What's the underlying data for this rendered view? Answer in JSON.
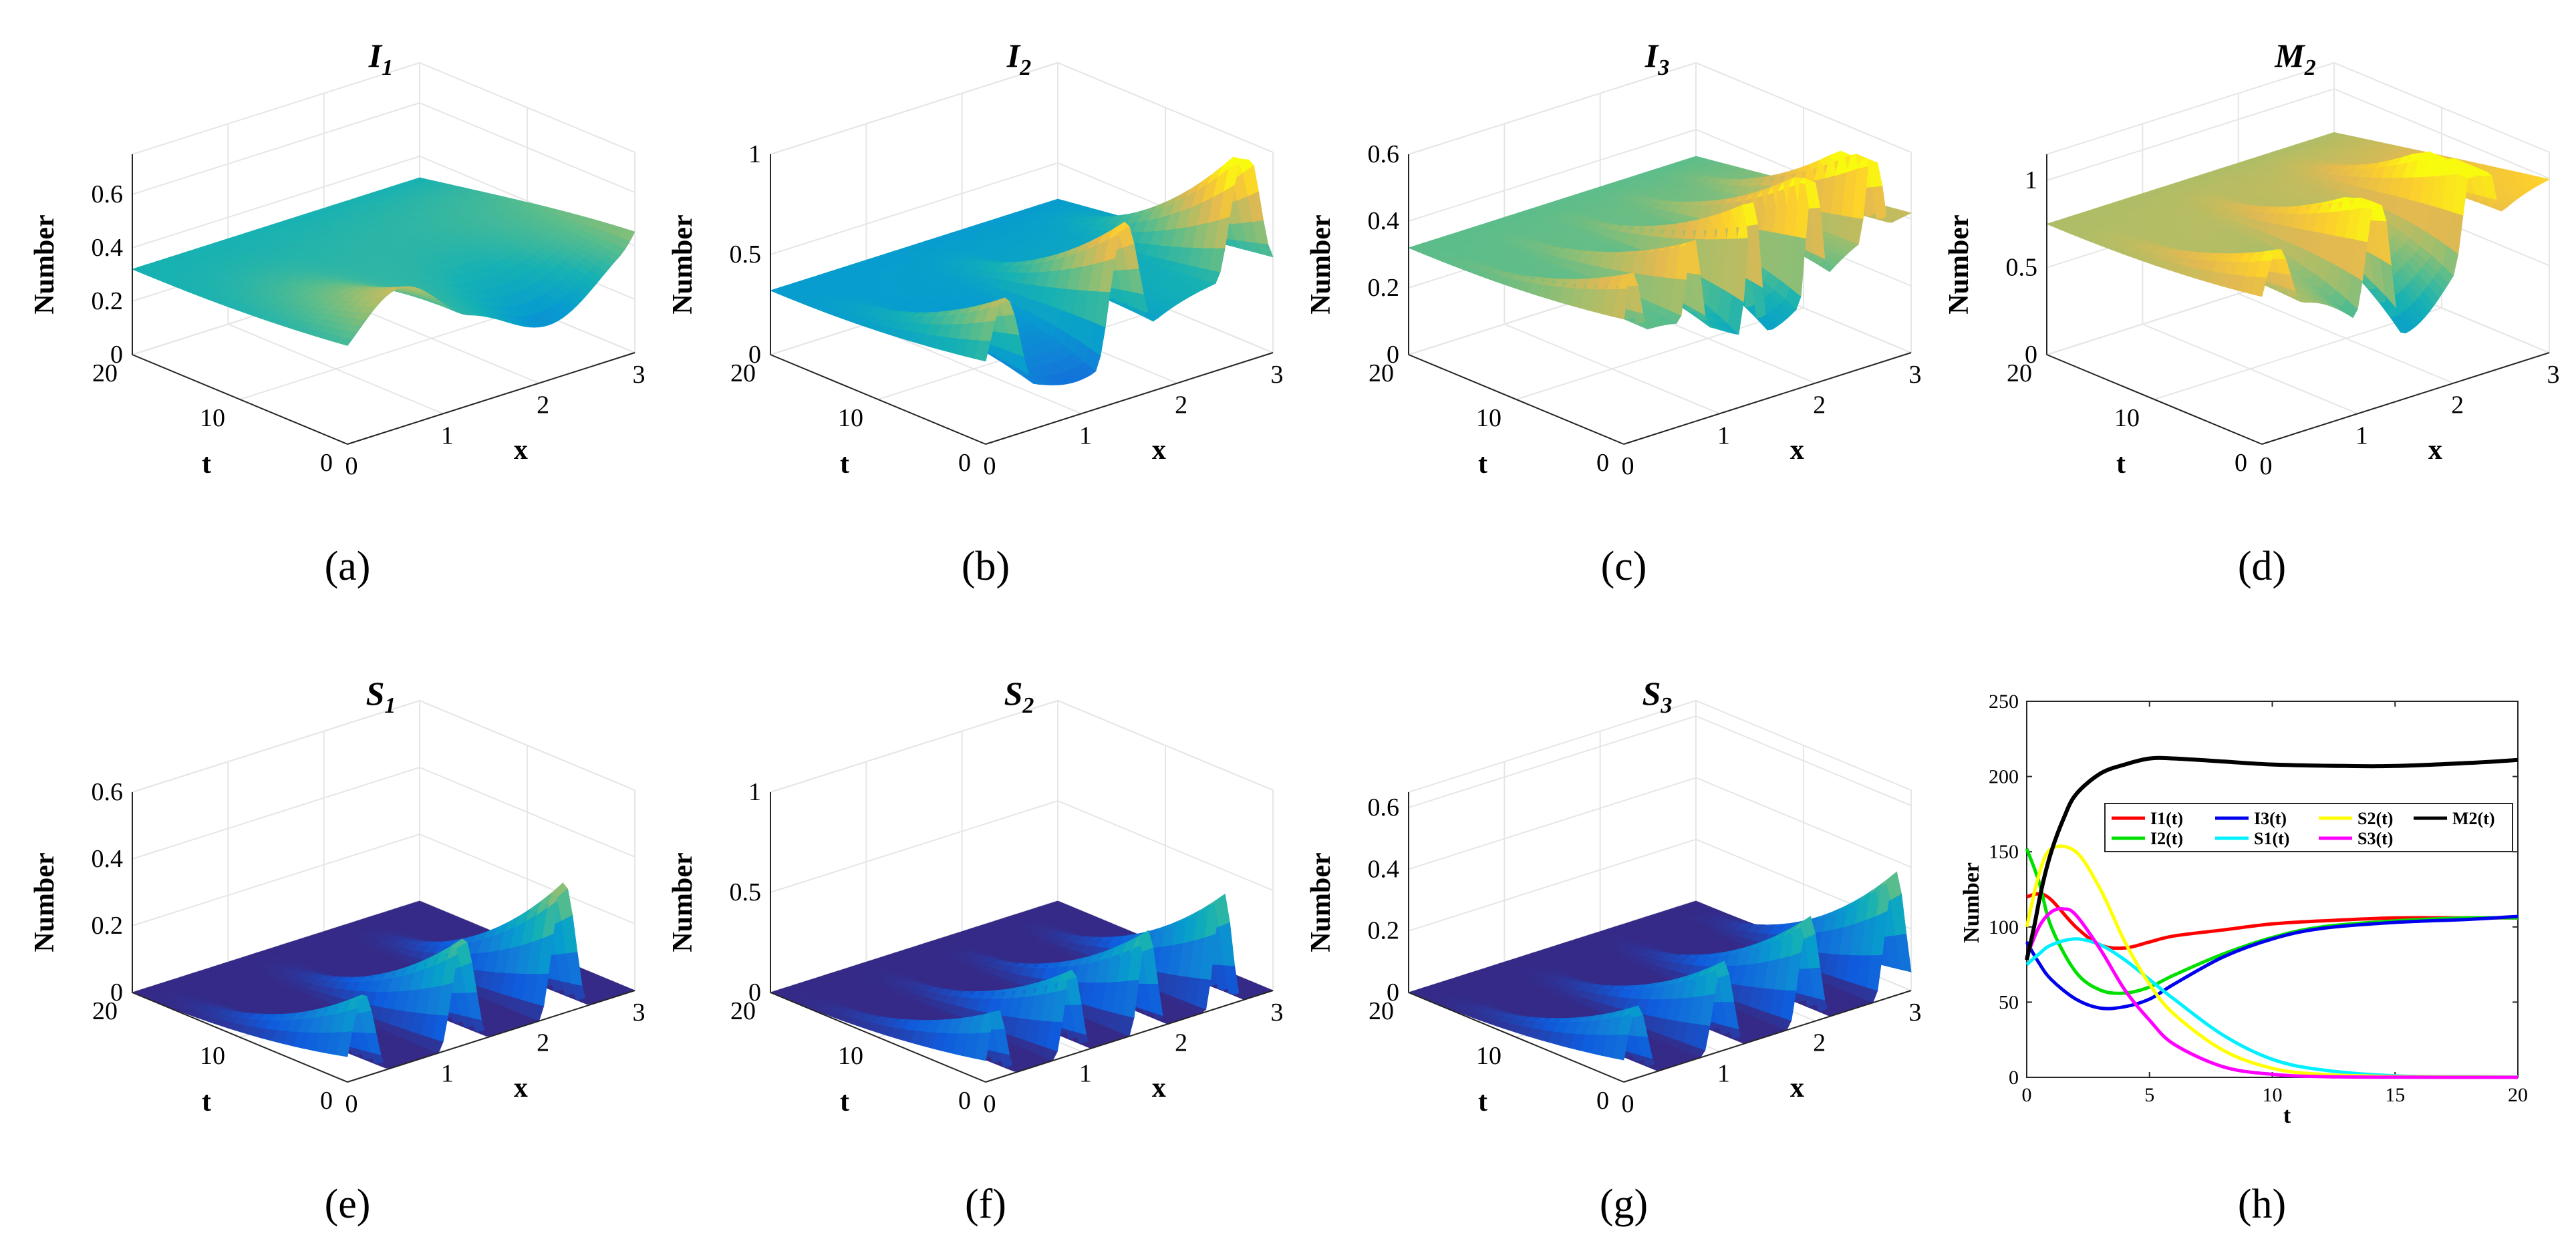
{
  "figure": {
    "panels": [
      {
        "id": "a",
        "caption": "(a)",
        "title_main": "I",
        "title_sub": "1",
        "zlabel": "Number",
        "xlabel": "x",
        "tlabel": "t",
        "zticks": [
          "0",
          "0.2",
          "0.4",
          "0.6"
        ],
        "xticks": [
          "0",
          "1",
          "2",
          "3"
        ],
        "tticks": [
          "0",
          "10",
          "20"
        ],
        "zmax": 0.75
      },
      {
        "id": "b",
        "caption": "(b)",
        "title_main": "I",
        "title_sub": "2",
        "zlabel": "Number",
        "xlabel": "x",
        "tlabel": "t",
        "zticks": [
          "0",
          "0.5",
          "1"
        ],
        "xticks": [
          "0",
          "1",
          "2",
          "3"
        ],
        "tticks": [
          "0",
          "10",
          "20"
        ],
        "zmax": 1.0
      },
      {
        "id": "c",
        "caption": "(c)",
        "title_main": "I",
        "title_sub": "3",
        "zlabel": "Number",
        "xlabel": "x",
        "tlabel": "t",
        "zticks": [
          "0",
          "0.2",
          "0.4",
          "0.6"
        ],
        "xticks": [
          "0",
          "1",
          "2",
          "3"
        ],
        "tticks": [
          "0",
          "10",
          "20"
        ],
        "zmax": 0.6
      },
      {
        "id": "d",
        "caption": "(d)",
        "title_main": "M",
        "title_sub": "2",
        "zlabel": "Number",
        "xlabel": "x",
        "tlabel": "t",
        "zticks": [
          "0",
          "0.5",
          "1"
        ],
        "xticks": [
          "0",
          "1",
          "2",
          "3"
        ],
        "tticks": [
          "0",
          "10",
          "20"
        ],
        "zmax": 1.15
      },
      {
        "id": "e",
        "caption": "(e)",
        "title_main": "S",
        "title_sub": "1",
        "zlabel": "Number",
        "xlabel": "x",
        "tlabel": "t",
        "zticks": [
          "0",
          "0.2",
          "0.4",
          "0.6"
        ],
        "xticks": [
          "0",
          "1",
          "2",
          "3"
        ],
        "tticks": [
          "0",
          "10",
          "20"
        ],
        "zmax": 0.6
      },
      {
        "id": "f",
        "caption": "(f)",
        "title_main": "S",
        "title_sub": "2",
        "zlabel": "Number",
        "xlabel": "x",
        "tlabel": "t",
        "zticks": [
          "0",
          "0.5",
          "1"
        ],
        "xticks": [
          "0",
          "1",
          "2",
          "3"
        ],
        "tticks": [
          "0",
          "10",
          "20"
        ],
        "zmax": 1.0
      },
      {
        "id": "g",
        "caption": "(g)",
        "title_main": "S",
        "title_sub": "3",
        "zlabel": "Number",
        "xlabel": "x",
        "tlabel": "t",
        "zticks": [
          "0",
          "0.2",
          "0.4",
          "0.6"
        ],
        "xticks": [
          "0",
          "1",
          "2",
          "3"
        ],
        "tticks": [
          "0",
          "10",
          "20"
        ],
        "zmax": 0.65
      }
    ]
  },
  "chart_data": [
    {
      "type": "surface",
      "title": "I1",
      "xlabel": "x",
      "ylabel": "t",
      "zlabel": "Number",
      "xlim": [
        0,
        3
      ],
      "tlim": [
        0,
        20
      ],
      "zlim": [
        0,
        0.75
      ],
      "surface_model": {
        "base": 0.32,
        "base_end": 0.47,
        "wave_x": 2.0,
        "ampl": 0.22,
        "dip": 0.22,
        "dip_x": 2.15
      }
    },
    {
      "type": "surface",
      "title": "I2",
      "xlabel": "x",
      "ylabel": "t",
      "zlabel": "Number",
      "xlim": [
        0,
        3
      ],
      "tlim": [
        0,
        20
      ],
      "zlim": [
        0,
        1
      ],
      "surface_model": {
        "base": 0.32,
        "base_end": 0.47,
        "wave_x": 5.0,
        "ampl": 0.5,
        "dip": 0.2,
        "dip_x": 1.0
      }
    },
    {
      "type": "surface",
      "title": "I3",
      "xlabel": "x",
      "ylabel": "t",
      "zlabel": "Number",
      "xlim": [
        0,
        3
      ],
      "tlim": [
        0,
        20
      ],
      "zlim": [
        0,
        0.6
      ],
      "surface_model": {
        "base": 0.32,
        "base_end": 0.42,
        "wave_x": 10.0,
        "ampl": 0.25,
        "dip": 0.17,
        "dip_x": 1.5
      }
    },
    {
      "type": "surface",
      "title": "M2",
      "xlabel": "x",
      "ylabel": "t",
      "zlabel": "Number",
      "xlim": [
        0,
        3
      ],
      "tlim": [
        0,
        20
      ],
      "zlim": [
        0,
        1.15
      ],
      "surface_model": {
        "base": 0.75,
        "base_end": 1.0,
        "wave_x": 6.0,
        "ampl": 0.45,
        "dip": 0.5,
        "dip_x": 1.5
      }
    },
    {
      "type": "surface",
      "title": "S1",
      "xlabel": "x",
      "ylabel": "t",
      "zlabel": "Number",
      "xlim": [
        0,
        3
      ],
      "tlim": [
        0,
        20
      ],
      "zlim": [
        0,
        0.6
      ],
      "surface_model": {
        "base": 0.0,
        "base_end": 0.0,
        "wave_x": 6.0,
        "ampl": 0.34,
        "dip": 0.0,
        "dip_x": 1.5
      }
    },
    {
      "type": "surface",
      "title": "S2",
      "xlabel": "x",
      "ylabel": "t",
      "zlabel": "Number",
      "xlim": [
        0,
        3
      ],
      "tlim": [
        0,
        20
      ],
      "zlim": [
        0,
        1
      ],
      "surface_model": {
        "base": 0.0,
        "base_end": 0.0,
        "wave_x": 8.0,
        "ampl": 0.48,
        "dip": 0.0,
        "dip_x": 1.5
      }
    },
    {
      "type": "surface",
      "title": "S3",
      "xlabel": "x",
      "ylabel": "t",
      "zlabel": "Number",
      "xlim": [
        0,
        3
      ],
      "tlim": [
        0,
        20
      ],
      "zlim": [
        0,
        0.65
      ],
      "surface_model": {
        "base": 0.0,
        "base_end": 0.0,
        "wave_x": 7.0,
        "ampl": 0.32,
        "dip": 0.0,
        "dip_x": 1.5
      }
    },
    {
      "type": "line",
      "title": "",
      "caption": "(h)",
      "xlabel": "t",
      "ylabel": "Number",
      "xlim": [
        0,
        20
      ],
      "ylim": [
        0,
        250
      ],
      "xticks": [
        0,
        5,
        10,
        15,
        20
      ],
      "yticks": [
        0,
        50,
        100,
        150,
        200,
        250
      ],
      "legend_location": "upper-right",
      "series": [
        {
          "name": "I1(t)",
          "color": "#ff0000",
          "x": [
            0,
            0.5,
            1,
            2,
            3,
            4,
            5,
            6,
            8,
            10,
            12,
            15,
            18,
            20
          ],
          "y": [
            120,
            122,
            118,
            100,
            88,
            86,
            90,
            94,
            98,
            102,
            104,
            106,
            106,
            106
          ]
        },
        {
          "name": "I2(t)",
          "color": "#00e000",
          "x": [
            0,
            0.5,
            1,
            2,
            3,
            4,
            5,
            6,
            8,
            10,
            12,
            15,
            18,
            20
          ],
          "y": [
            152,
            130,
            100,
            70,
            58,
            56,
            60,
            68,
            82,
            93,
            100,
            104,
            106,
            106
          ]
        },
        {
          "name": "I3(t)",
          "color": "#0000ee",
          "x": [
            0,
            0.5,
            1,
            2,
            3,
            4,
            5,
            6,
            8,
            10,
            12,
            15,
            18,
            20
          ],
          "y": [
            90,
            76,
            65,
            52,
            46,
            47,
            52,
            62,
            80,
            92,
            99,
            103,
            105,
            107
          ]
        },
        {
          "name": "S1(t)",
          "color": "#00f0ff",
          "x": [
            0,
            0.5,
            1,
            2,
            3,
            4,
            5,
            6,
            8,
            10,
            12,
            15,
            18,
            20
          ],
          "y": [
            75,
            82,
            88,
            92,
            88,
            78,
            65,
            52,
            28,
            12,
            5,
            1,
            0.5,
            0.2
          ]
        },
        {
          "name": "S2(t)",
          "color": "#ffff00",
          "x": [
            0,
            0.5,
            1,
            2,
            3,
            4,
            5,
            6,
            8,
            10,
            12,
            15,
            18,
            20
          ],
          "y": [
            100,
            135,
            152,
            150,
            125,
            90,
            62,
            42,
            18,
            6,
            2,
            0.5,
            0.2,
            0.1
          ]
        },
        {
          "name": "S3(t)",
          "color": "#ff00ff",
          "x": [
            0,
            0.5,
            1,
            1.5,
            2,
            3,
            4,
            5,
            6,
            8,
            10,
            12,
            15,
            20
          ],
          "y": [
            80,
            100,
            110,
            112,
            108,
            85,
            58,
            38,
            22,
            7,
            2,
            0.5,
            0.1,
            0
          ]
        },
        {
          "name": "M2(t)",
          "color": "#000000",
          "x": [
            0,
            0.3,
            0.6,
            1,
            1.5,
            2,
            3,
            4,
            5,
            6,
            8,
            10,
            13,
            15,
            18,
            20
          ],
          "y": [
            78,
            100,
            125,
            150,
            172,
            188,
            202,
            208,
            212,
            212,
            210,
            208,
            207,
            207,
            209,
            211
          ]
        }
      ]
    }
  ]
}
